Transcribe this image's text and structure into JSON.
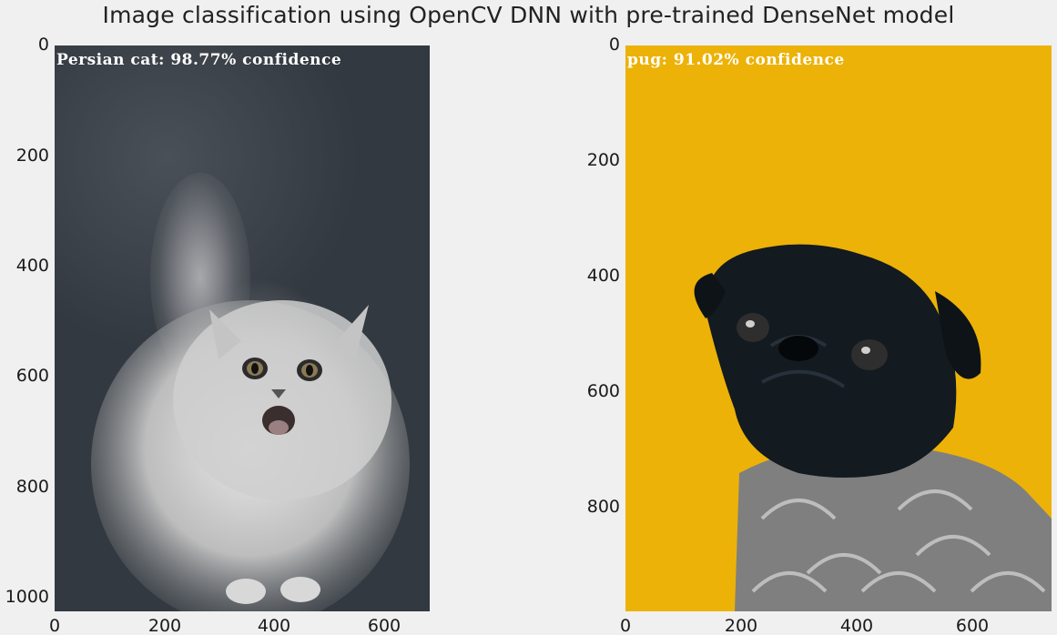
{
  "figure": {
    "title": "Image classification using OpenCV DNN with pre-trained DenseNet model",
    "background": "#f0f0f0"
  },
  "panels": [
    {
      "overlay": "Persian cat: 98.77% confidence",
      "subject": "persian-cat-photo",
      "image_size": {
        "width": 683,
        "height": 1024
      },
      "x_ticks": [
        "0",
        "200",
        "400",
        "600"
      ],
      "y_ticks": [
        "0",
        "200",
        "400",
        "600",
        "800",
        "1000"
      ],
      "background_color": "#3a4048"
    },
    {
      "overlay": "pug: 91.02% confidence",
      "subject": "pug-dog-photo",
      "image_size": {
        "width": 736,
        "height": 981
      },
      "x_ticks": [
        "0",
        "200",
        "400",
        "600"
      ],
      "y_ticks": [
        "0",
        "200",
        "400",
        "600",
        "800"
      ],
      "background_color": "#ecb208"
    }
  ]
}
